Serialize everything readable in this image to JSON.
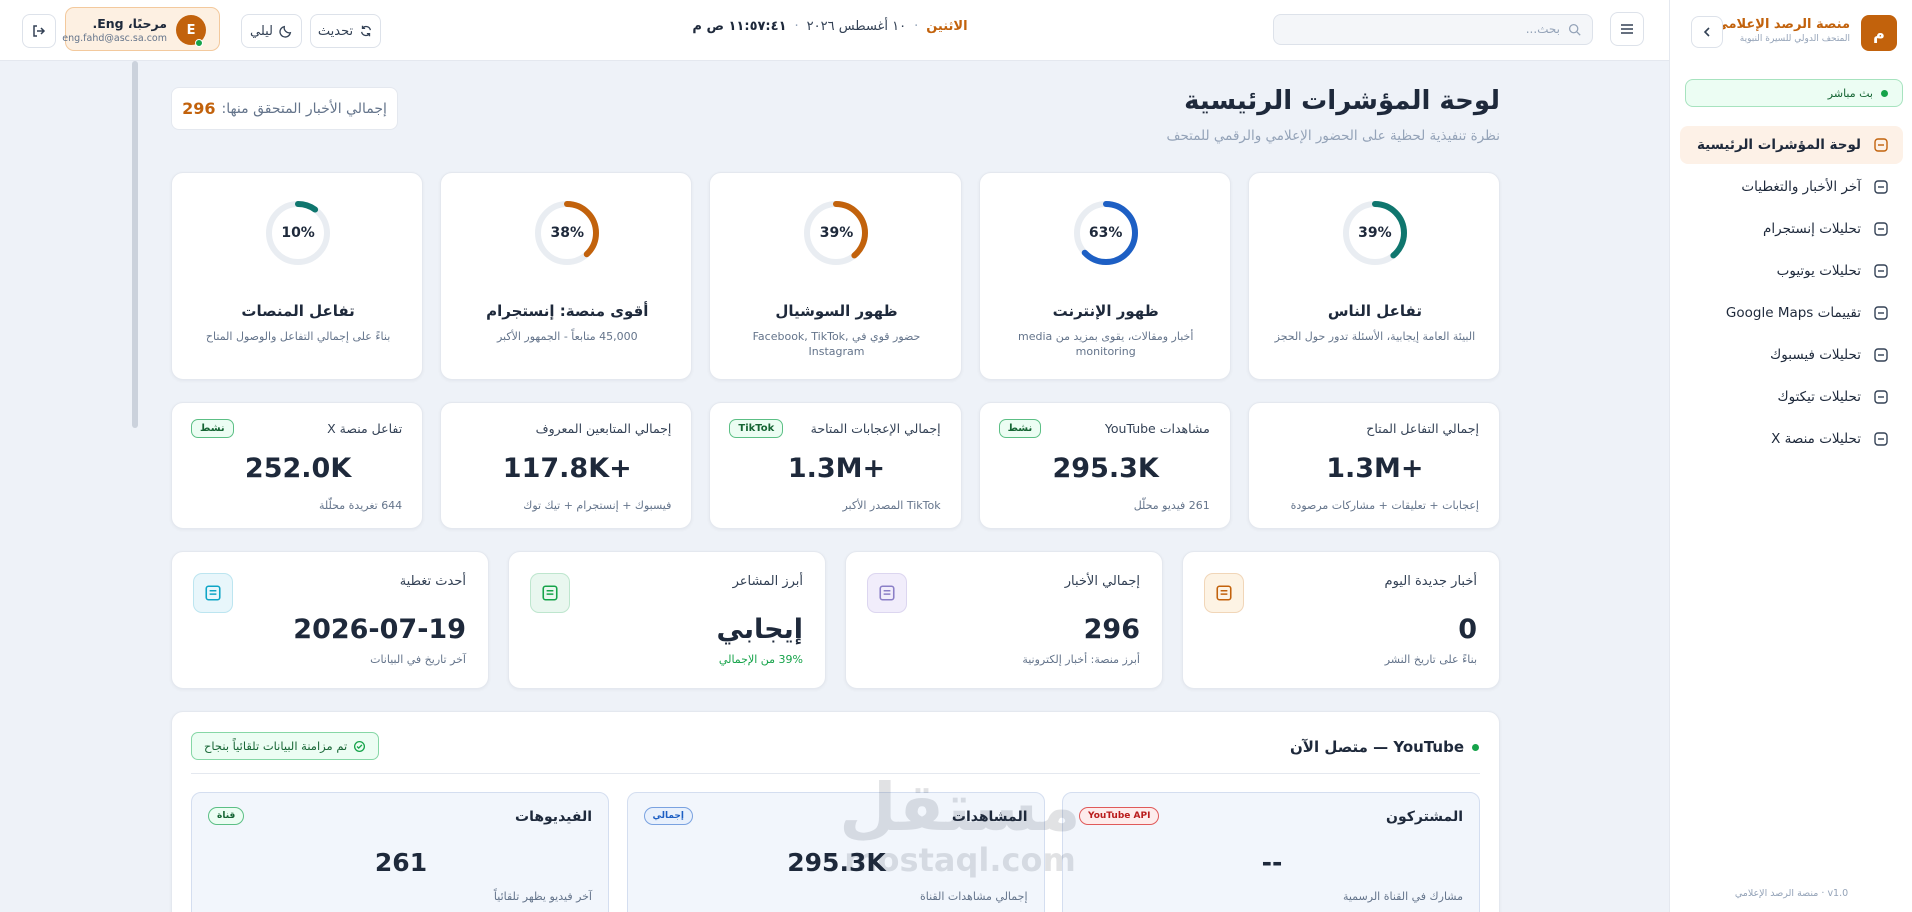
{
  "sidebar": {
    "brand_initial": "م",
    "brand_title": "منصة الرصد الإعلامي",
    "brand_subtitle": "المتحف الدولي للسيرة النبوية",
    "live": "بث مباشر",
    "nav": [
      "لوحة المؤشرات الرئيسية",
      "آخر الأخبار والتغطيات",
      "تحليلات إنستجرام",
      "تحليلات يوتيوب",
      "تقييمات Google Maps",
      "تحليلات فيسبوك",
      "تحليلات تيكتوك",
      "تحليلات منصة X"
    ],
    "footer": "v1.0 · منصة الرصد الإعلامي"
  },
  "header": {
    "day": "الاثنين",
    "date": "١٠ أغسطس ٢٠٢٦",
    "time": "١١:٥٧:٤١ ص م",
    "search_placeholder": "بحث...",
    "refresh": "تحديث",
    "theme": "ليلي",
    "user_name": "مرحبًا، Eng.",
    "user_email": "eng.fahd@asc.sa.com",
    "user_initial": "E"
  },
  "page": {
    "title": "لوحة المؤشرات الرئيسية",
    "subtitle": "نظرة تنفيذية لحظية على الحضور الإعلامي والرقمي للمتحف",
    "verified_label": "إجمالي الأخبار المتحقق منها:",
    "verified_value": "296"
  },
  "gauges": [
    {
      "value": 39,
      "label": "39%",
      "title": "تفاعل الناس",
      "desc": "البيئة العامة إيجابية، الأسئلة تدور حول الحجز",
      "color": "#0f766e"
    },
    {
      "value": 63,
      "label": "63%",
      "title": "ظهور الإنترنت",
      "desc": "أخبار ومقالات، يقوى بمزيد من media monitoring",
      "color": "#1d5fc4"
    },
    {
      "value": 39,
      "label": "39%",
      "title": "ظهور السوشيال",
      "desc": "حضور قوي في Facebook, TikTok, Instagram",
      "color": "#c2620c"
    },
    {
      "value": 38,
      "label": "38%",
      "title": "أقوى منصة: إنستجرام",
      "desc": "45,000 متابعاً - الجمهور الأكبر",
      "color": "#c2620c"
    },
    {
      "value": 10,
      "label": "10%",
      "title": "تفاعل المنصات",
      "desc": "بناءً على إجمالي التفاعل والوصول المتاح",
      "color": "#0f766e"
    }
  ],
  "stats": [
    {
      "label": "إجمالي التفاعل المتاح",
      "value": "1.3M+",
      "note": "إعجابات + تعليقات + مشاركات مرصودة"
    },
    {
      "label": "مشاهدات YouTube",
      "badge": "نشط",
      "value": "295.3K",
      "note": "261 فيديو محلّل"
    },
    {
      "label": "إجمالي الإعجابات المتاحة",
      "badge": "TikTok",
      "value": "1.3M+",
      "note": "TikTok المصدر الأكبر"
    },
    {
      "label": "إجمالي المتابعين المعروف",
      "value": "117.8K+",
      "note": "فيسبوك + إنستجرام + تيك توك"
    },
    {
      "label": "تفاعل منصة X",
      "badge": "نشط",
      "value": "252.0K",
      "note": "644 تغريدة محلّلة"
    }
  ],
  "kpis": [
    {
      "label": "أخبار جديدة اليوم",
      "value": "0",
      "note": "بناءً على تاريخ النشر"
    },
    {
      "label": "إجمالي الأخبار",
      "value": "296",
      "note": "أبرز منصة: أخبار إلكترونية"
    },
    {
      "label": "أبرز المشاعر",
      "value": "إيجابي",
      "note": "39% من الإجمالي"
    },
    {
      "label": "أحدث تغطية",
      "value": "2026-07-19",
      "note": "آخر تاريخ في البيانات"
    }
  ],
  "youtube": {
    "title": "YouTube — متصل الآن",
    "sync": "تم مزامنة البيانات تلقائياً بنجاح",
    "cards": [
      {
        "title": "المشتركون",
        "badge": "YouTube API",
        "value": "--",
        "note": "مشارك في القناة الرسمية"
      },
      {
        "title": "المشاهدات",
        "badge": "إجمالي",
        "value": "295.3K",
        "note": "إجمالي مشاهدات القناة"
      },
      {
        "title": "الفيديوهات",
        "badge": "قناة",
        "value": "261",
        "note": "آخر فيديو يظهر تلقائياً"
      }
    ]
  },
  "watermark": {
    "arabic": "مستقل",
    "latin": "mostaql.com"
  }
}
